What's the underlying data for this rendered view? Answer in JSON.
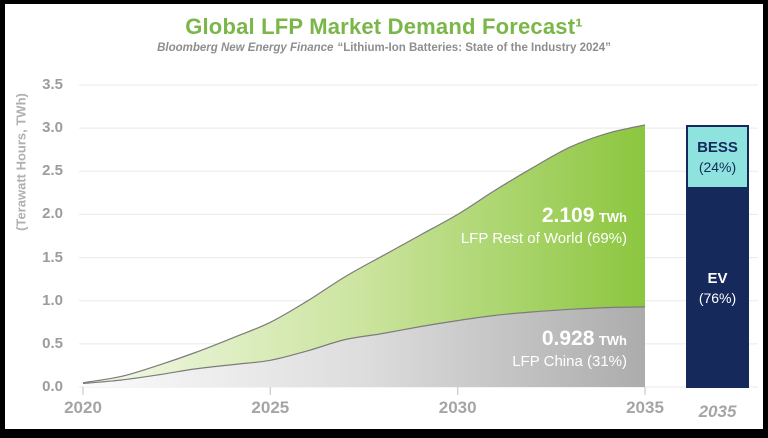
{
  "header": {
    "title": "Global LFP Market Demand Forecast¹",
    "source_name": "Bloomberg New Energy Finance",
    "source_quote": "“Lithium-Ion Batteries: State of the Industry 2024”"
  },
  "chart_data": {
    "type": "area",
    "stacked": true,
    "title": "Global LFP Market Demand Forecast",
    "xlabel": "",
    "ylabel": "(Terawatt Hours, TWh)",
    "x": [
      2020,
      2021,
      2022,
      2023,
      2024,
      2025,
      2026,
      2027,
      2028,
      2029,
      2030,
      2031,
      2032,
      2033,
      2034,
      2035
    ],
    "x_tick_years": [
      2020,
      2025,
      2030,
      2035
    ],
    "y_ticks": [
      "0.0",
      "0.5",
      "1.0",
      "1.5",
      "2.0",
      "2.5",
      "3.0",
      "3.5"
    ],
    "ylim": [
      0,
      3.5
    ],
    "grid": "horizontal",
    "series": [
      {
        "name": "LFP China",
        "values": [
          0.04,
          0.08,
          0.14,
          0.21,
          0.26,
          0.31,
          0.42,
          0.55,
          0.62,
          0.7,
          0.77,
          0.83,
          0.87,
          0.9,
          0.92,
          0.928
        ]
      },
      {
        "name": "LFP Rest of World",
        "values": [
          0.01,
          0.04,
          0.11,
          0.19,
          0.31,
          0.44,
          0.58,
          0.73,
          0.9,
          1.06,
          1.23,
          1.45,
          1.67,
          1.88,
          2.02,
          2.109
        ]
      }
    ],
    "total_2035_twh": 3.037,
    "annotations": [
      {
        "value": "2.109",
        "unit": "TWh",
        "label": "LFP Rest of World (69%)"
      },
      {
        "value": "0.928",
        "unit": "TWh",
        "label": "LFP China (31%)"
      }
    ]
  },
  "bar_2035": {
    "x_label": "2035",
    "segments": [
      {
        "name": "BESS",
        "pct_label": "(24%)",
        "pct": 24.5
      },
      {
        "name": "EV",
        "pct_label": "(76%)",
        "pct": 75.5
      }
    ]
  },
  "colors": {
    "title_green": "#7ab648",
    "subtitle_gray": "#8e8e8e",
    "grid": "#eaeaea",
    "tick": "#c9c9c9",
    "green_start": "#f3f9ea",
    "green_mid": "#cbe49e",
    "green_end": "#8cc63f",
    "gray_start": "#fbfbfb",
    "gray_mid": "#dddddd",
    "gray_end": "#acacac",
    "edge_stroke": "#7c7c7c",
    "bess_fill": "#8fe3de",
    "navy": "#15295a",
    "white": "#ffffff"
  }
}
